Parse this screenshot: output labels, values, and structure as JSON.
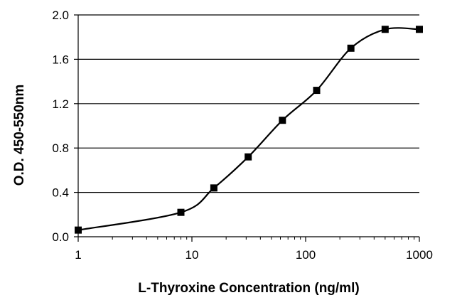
{
  "chart_data": {
    "type": "line",
    "title": "",
    "xlabel": "L-Thyroxine Concentration (ng/ml)",
    "ylabel": "O.D. 450-550nm",
    "x_scale": "log",
    "xlim": [
      1,
      1000
    ],
    "ylim": [
      0,
      2.0
    ],
    "x_ticks": [
      1,
      10,
      100,
      1000
    ],
    "x_tick_labels": [
      "1",
      "10",
      "100",
      "1000"
    ],
    "y_ticks": [
      0,
      0.4,
      0.8,
      1.2,
      1.6,
      2.0
    ],
    "y_tick_labels": [
      "0.0",
      "0.4",
      "0.8",
      "1.2",
      "1.6",
      "2.0"
    ],
    "grid": "horizontal",
    "legend": "none",
    "marker": "square",
    "line_style": "smooth",
    "color": "#000000",
    "series": [
      {
        "x": [
          1,
          8,
          15.6,
          31.25,
          62.5,
          125,
          250,
          500,
          1000
        ],
        "y": [
          0.06,
          0.22,
          0.44,
          0.72,
          1.05,
          1.32,
          1.7,
          1.87,
          1.87
        ]
      }
    ]
  }
}
